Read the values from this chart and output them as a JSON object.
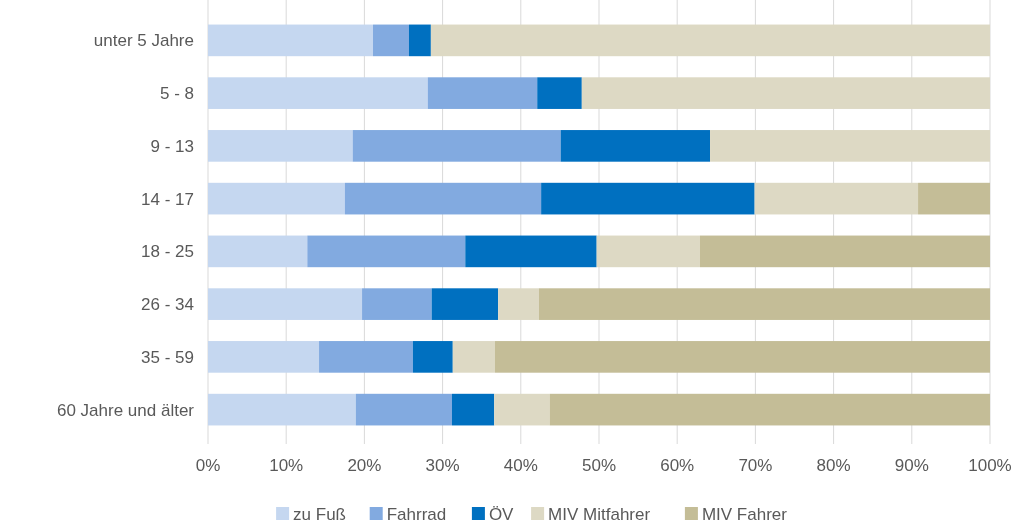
{
  "chart_data": {
    "type": "bar",
    "orientation": "horizontal",
    "stacked": true,
    "categories": [
      "unter 5 Jahre",
      "5 - 8",
      "9 - 13",
      "14 - 17",
      "18 - 25",
      "26 - 34",
      "35 - 59",
      "60 Jahre und älter"
    ],
    "series": [
      {
        "name": "zu Fuß",
        "color": "#c5d7f0",
        "values": [
          21.1,
          28.1,
          18.5,
          17.5,
          12.7,
          19.7,
          14.2,
          18.9
        ]
      },
      {
        "name": "Fahrrad",
        "color": "#82aae0",
        "values": [
          4.6,
          14.0,
          26.6,
          25.1,
          20.2,
          8.9,
          12.0,
          12.3
        ]
      },
      {
        "name": "ÖV",
        "color": "#0070c0",
        "values": [
          2.8,
          5.7,
          19.1,
          27.3,
          16.8,
          8.5,
          5.1,
          5.4
        ]
      },
      {
        "name": "MIV Mitfahrer",
        "color": "#ddd9c4",
        "values": [
          71.5,
          52.2,
          35.8,
          20.9,
          13.2,
          5.2,
          5.4,
          7.1
        ]
      },
      {
        "name": "MIV Fahrer",
        "color": "#c4bd97",
        "values": [
          0,
          0,
          0,
          9.2,
          37.1,
          57.7,
          63.3,
          56.3
        ]
      }
    ],
    "xlim": [
      0,
      100
    ],
    "xticks": [
      {
        "value": 0,
        "label": "0%"
      },
      {
        "value": 10,
        "label": "10%"
      },
      {
        "value": 20,
        "label": "20%"
      },
      {
        "value": 30,
        "label": "30%"
      },
      {
        "value": 40,
        "label": "40%"
      },
      {
        "value": 50,
        "label": "50%"
      },
      {
        "value": 60,
        "label": "60%"
      },
      {
        "value": 70,
        "label": "70%"
      },
      {
        "value": 80,
        "label": "80%"
      },
      {
        "value": 90,
        "label": "90%"
      },
      {
        "value": 100,
        "label": "100%"
      }
    ],
    "grid": "x",
    "legend": "bottom"
  }
}
